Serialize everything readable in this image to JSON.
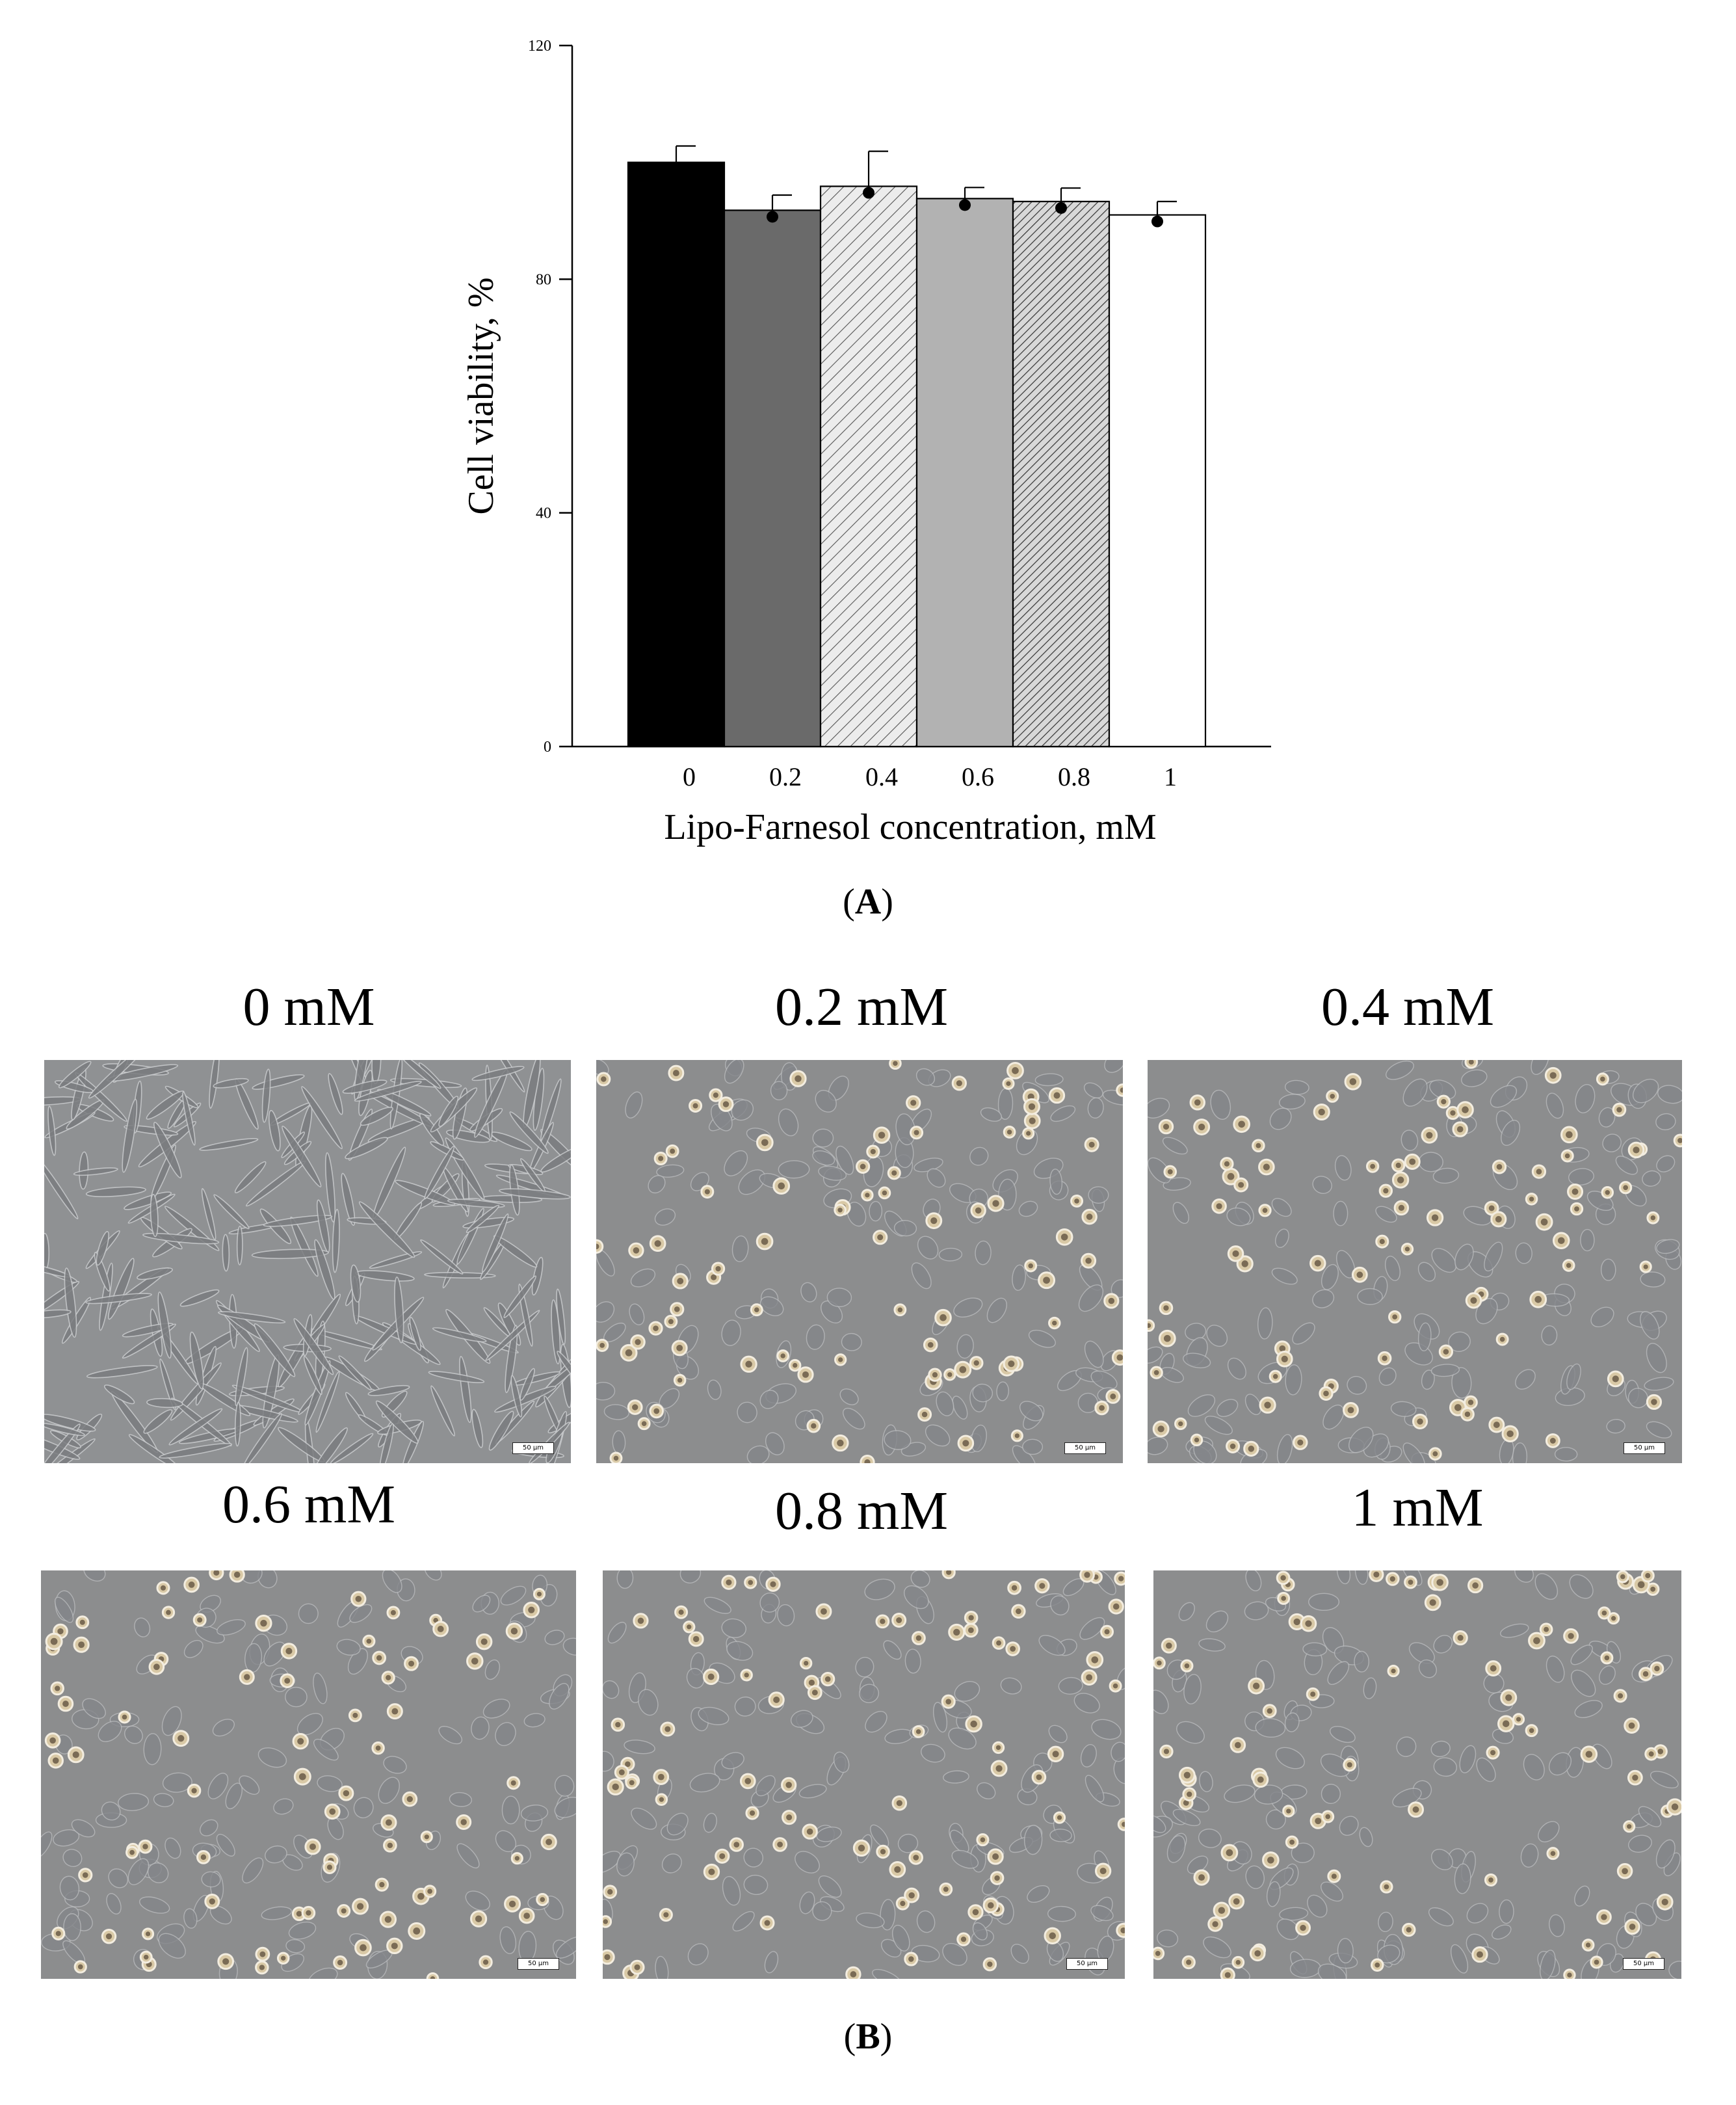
{
  "chart_data": {
    "type": "bar",
    "categories": [
      "0",
      "0.2",
      "0.4",
      "0.6",
      "0.8",
      "1"
    ],
    "values": [
      100,
      91.8,
      95.9,
      93.8,
      93.3,
      91.0
    ],
    "errors": [
      2.8,
      2.6,
      6.0,
      1.9,
      2.3,
      2.3
    ],
    "bar_styles": [
      "solid-black",
      "solid-dark-gray",
      "hatched-light",
      "solid-light-gray",
      "hatched-dense",
      "white"
    ],
    "colors": {
      "black": "#000000",
      "dark_gray": "#6a6a6a",
      "light_gray": "#b2b2b2",
      "hatch_bg": "#e8e8e8",
      "white": "#ffffff"
    },
    "ylim": [
      0,
      120
    ],
    "yticks": [
      "0",
      "40",
      "80",
      "120"
    ],
    "ylabel": "Cell viability, %",
    "xlabel": "Lipo-Farnesol concentration, mM",
    "grid": false,
    "legend": "none"
  },
  "panels": {
    "a_label": "A",
    "b_label": "B"
  },
  "micrographs": [
    {
      "title": "0 mM",
      "scale": "50 µm",
      "morphology": "elongated"
    },
    {
      "title": "0.2 mM",
      "scale": "50 µm",
      "morphology": "rounded"
    },
    {
      "title": "0.4 mM",
      "scale": "50 µm",
      "morphology": "rounded"
    },
    {
      "title": "0.6 mM",
      "scale": "50 µm",
      "morphology": "rounded"
    },
    {
      "title": "0.8 mM",
      "scale": "50 µm",
      "morphology": "rounded"
    },
    {
      "title": "1 mM",
      "scale": "50 µm",
      "morphology": "rounded"
    }
  ]
}
